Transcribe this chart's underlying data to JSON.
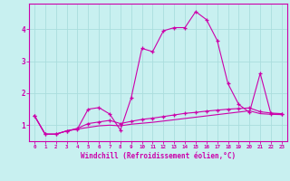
{
  "title": "",
  "xlabel": "Windchill (Refroidissement éolien,°C)",
  "ylabel": "",
  "background_color": "#c8f0f0",
  "line_color": "#cc00aa",
  "grid_color": "#aadddd",
  "xlim": [
    -0.5,
    23.5
  ],
  "ylim": [
    0.5,
    4.8
  ],
  "xticks": [
    0,
    1,
    2,
    3,
    4,
    5,
    6,
    7,
    8,
    9,
    10,
    11,
    12,
    13,
    14,
    15,
    16,
    17,
    18,
    19,
    20,
    21,
    22,
    23
  ],
  "yticks": [
    1,
    2,
    3,
    4
  ],
  "series1": [
    [
      0,
      1.3
    ],
    [
      1,
      0.72
    ],
    [
      2,
      0.72
    ],
    [
      3,
      0.82
    ],
    [
      4,
      0.88
    ],
    [
      5,
      1.5
    ],
    [
      6,
      1.55
    ],
    [
      7,
      1.35
    ],
    [
      8,
      0.85
    ],
    [
      9,
      1.85
    ],
    [
      10,
      3.4
    ],
    [
      11,
      3.3
    ],
    [
      12,
      3.95
    ],
    [
      13,
      4.05
    ],
    [
      14,
      4.05
    ],
    [
      15,
      4.55
    ],
    [
      16,
      4.3
    ],
    [
      17,
      3.65
    ],
    [
      18,
      2.3
    ],
    [
      19,
      1.65
    ],
    [
      20,
      1.4
    ],
    [
      21,
      2.62
    ],
    [
      22,
      1.35
    ],
    [
      23,
      1.35
    ]
  ],
  "series2": [
    [
      0,
      1.3
    ],
    [
      1,
      0.72
    ],
    [
      2,
      0.72
    ],
    [
      3,
      0.82
    ],
    [
      4,
      0.9
    ],
    [
      5,
      1.05
    ],
    [
      6,
      1.1
    ],
    [
      7,
      1.15
    ],
    [
      8,
      1.05
    ],
    [
      9,
      1.12
    ],
    [
      10,
      1.18
    ],
    [
      11,
      1.22
    ],
    [
      12,
      1.27
    ],
    [
      13,
      1.32
    ],
    [
      14,
      1.37
    ],
    [
      15,
      1.4
    ],
    [
      16,
      1.44
    ],
    [
      17,
      1.47
    ],
    [
      18,
      1.5
    ],
    [
      19,
      1.52
    ],
    [
      20,
      1.54
    ],
    [
      21,
      1.42
    ],
    [
      22,
      1.38
    ],
    [
      23,
      1.36
    ]
  ],
  "series3": [
    [
      0,
      1.3
    ],
    [
      1,
      0.72
    ],
    [
      2,
      0.72
    ],
    [
      3,
      0.82
    ],
    [
      4,
      0.88
    ],
    [
      5,
      0.93
    ],
    [
      6,
      0.98
    ],
    [
      7,
      1.0
    ],
    [
      8,
      0.98
    ],
    [
      9,
      1.03
    ],
    [
      10,
      1.06
    ],
    [
      11,
      1.09
    ],
    [
      12,
      1.13
    ],
    [
      13,
      1.17
    ],
    [
      14,
      1.21
    ],
    [
      15,
      1.25
    ],
    [
      16,
      1.29
    ],
    [
      17,
      1.33
    ],
    [
      18,
      1.37
    ],
    [
      19,
      1.41
    ],
    [
      20,
      1.45
    ],
    [
      21,
      1.36
    ],
    [
      22,
      1.34
    ],
    [
      23,
      1.33
    ]
  ]
}
